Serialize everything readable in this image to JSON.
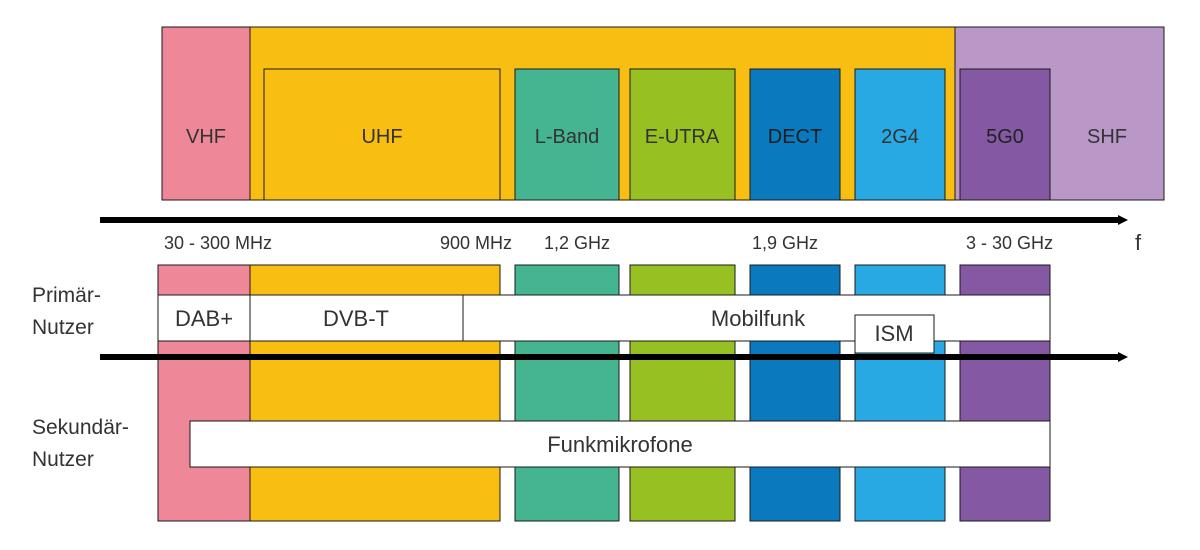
{
  "colors": {
    "vhf": "#ee8797",
    "uhf": "#f9be12",
    "shf": "#b998c8",
    "l_band": "#45b591",
    "e_utra": "#97c122",
    "dect": "#0a79bd",
    "g24": "#28a9e3",
    "g50": "#8458a2",
    "white": "#ffffff",
    "stroke": "#1a1a1a"
  },
  "top_bands": {
    "vhf": "VHF",
    "uhf_region": "UHF",
    "shf": "SHF",
    "uhf": "UHF",
    "l_band": "L-Band",
    "e_utra": "E-UTRA",
    "dect": "DECT",
    "g24": "2G4",
    "g50": "5G0"
  },
  "axis": {
    "symbol": "f",
    "freq_labels": {
      "vhf_range": "30 - 300 MHz",
      "f900": "900 MHz",
      "f12": "1,2 GHz",
      "f19": "1,9 GHz",
      "shf_range": "3 - 30 GHz"
    }
  },
  "users": {
    "primary_line1": "Primär-",
    "primary_line2": "Nutzer",
    "secondary_line1": "Sekundär-",
    "secondary_line2": "Nutzer"
  },
  "services": {
    "dab": "DAB+",
    "dvbt": "DVB-T",
    "mobilfunk": "Mobilfunk",
    "ism": "ISM",
    "funkmikrofone": "Funkmikrofone"
  }
}
